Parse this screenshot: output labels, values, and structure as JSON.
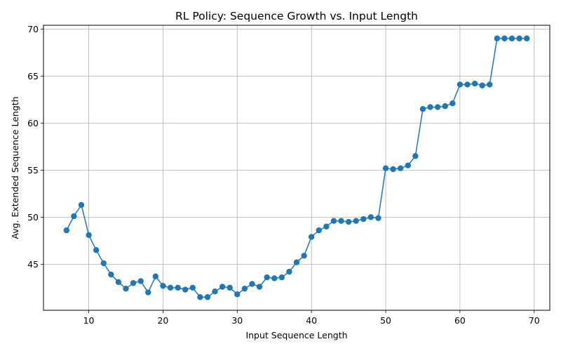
{
  "chart_data": {
    "type": "line",
    "title": "RL Policy: Sequence Growth vs. Input Length",
    "xlabel": "Input Sequence Length",
    "ylabel": "Avg. Extended Sequence Length",
    "xlim": [
      3.9,
      72.1
    ],
    "ylim": [
      40.1,
      70.4
    ],
    "xticks": [
      10,
      20,
      30,
      40,
      50,
      60,
      70
    ],
    "yticks": [
      45,
      50,
      55,
      60,
      65,
      70
    ],
    "grid": true,
    "marker": "circle",
    "color": "#1f77b4",
    "series": [
      {
        "x": [
          7,
          8,
          9,
          10,
          11,
          12,
          13,
          14,
          15,
          16,
          17,
          18,
          19,
          20,
          21,
          22,
          23,
          24,
          25,
          26,
          27,
          28,
          29,
          30,
          31,
          32,
          33,
          34,
          35,
          36,
          37,
          38,
          39,
          40,
          41,
          42,
          43,
          44,
          45,
          46,
          47,
          48,
          49,
          50,
          51,
          52,
          53,
          54,
          55,
          56,
          57,
          58,
          59,
          60,
          61,
          62,
          63,
          64,
          65,
          66,
          67,
          68,
          69
        ],
        "values": [
          48.6,
          50.1,
          51.3,
          48.1,
          46.5,
          45.1,
          43.9,
          43.1,
          42.4,
          43.0,
          43.2,
          42.0,
          43.7,
          42.7,
          42.5,
          42.5,
          42.3,
          42.5,
          41.5,
          41.5,
          42.1,
          42.6,
          42.5,
          41.8,
          42.4,
          42.9,
          42.6,
          43.6,
          43.5,
          43.6,
          44.2,
          45.2,
          45.9,
          47.9,
          48.6,
          49.0,
          49.6,
          49.6,
          49.5,
          49.6,
          49.8,
          50.0,
          49.9,
          55.2,
          55.1,
          55.2,
          55.5,
          56.5,
          61.5,
          61.7,
          61.7,
          61.8,
          62.1,
          64.1,
          64.1,
          64.2,
          64.0,
          64.1,
          69.0,
          69.0,
          69.0,
          69.0,
          69.0
        ]
      }
    ]
  }
}
